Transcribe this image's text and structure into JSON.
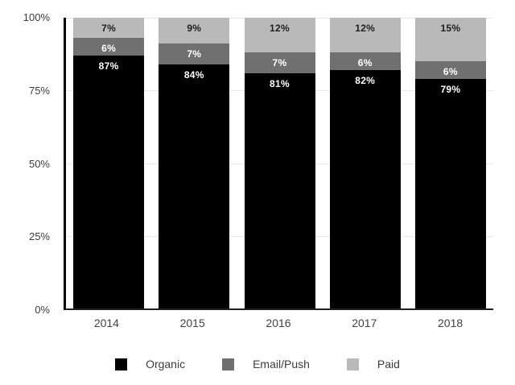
{
  "chart_data": {
    "type": "bar",
    "stacked": true,
    "stack_total": "100%",
    "title": "",
    "categories": [
      "2014",
      "2015",
      "2016",
      "2017",
      "2018"
    ],
    "series": [
      {
        "name": "Organic",
        "color": "#000000",
        "label_color": "#ffffff",
        "values": [
          87,
          84,
          81,
          82,
          79
        ],
        "labels": [
          "87%",
          "84%",
          "81%",
          "82%",
          "79%"
        ]
      },
      {
        "name": "Email/Push",
        "color": "#707070",
        "label_color": "#ffffff",
        "values": [
          6,
          7,
          7,
          6,
          6
        ],
        "labels": [
          "6%",
          "7%",
          "7%",
          "6%",
          "6%"
        ]
      },
      {
        "name": "Paid",
        "color": "#b9b9b9",
        "label_color": "#1f1f1f",
        "values": [
          7,
          9,
          12,
          12,
          15
        ],
        "labels": [
          "7%",
          "9%",
          "12%",
          "12%",
          "15%"
        ]
      }
    ],
    "y_axis": {
      "min": 0,
      "max": 100,
      "ticks": [
        {
          "label": "0%",
          "value": 0
        },
        {
          "label": "25%",
          "value": 25
        },
        {
          "label": "50%",
          "value": 50
        },
        {
          "label": "75%",
          "value": 75
        },
        {
          "label": "100%",
          "value": 100
        }
      ]
    },
    "grid": true,
    "legend_position": "bottom"
  }
}
